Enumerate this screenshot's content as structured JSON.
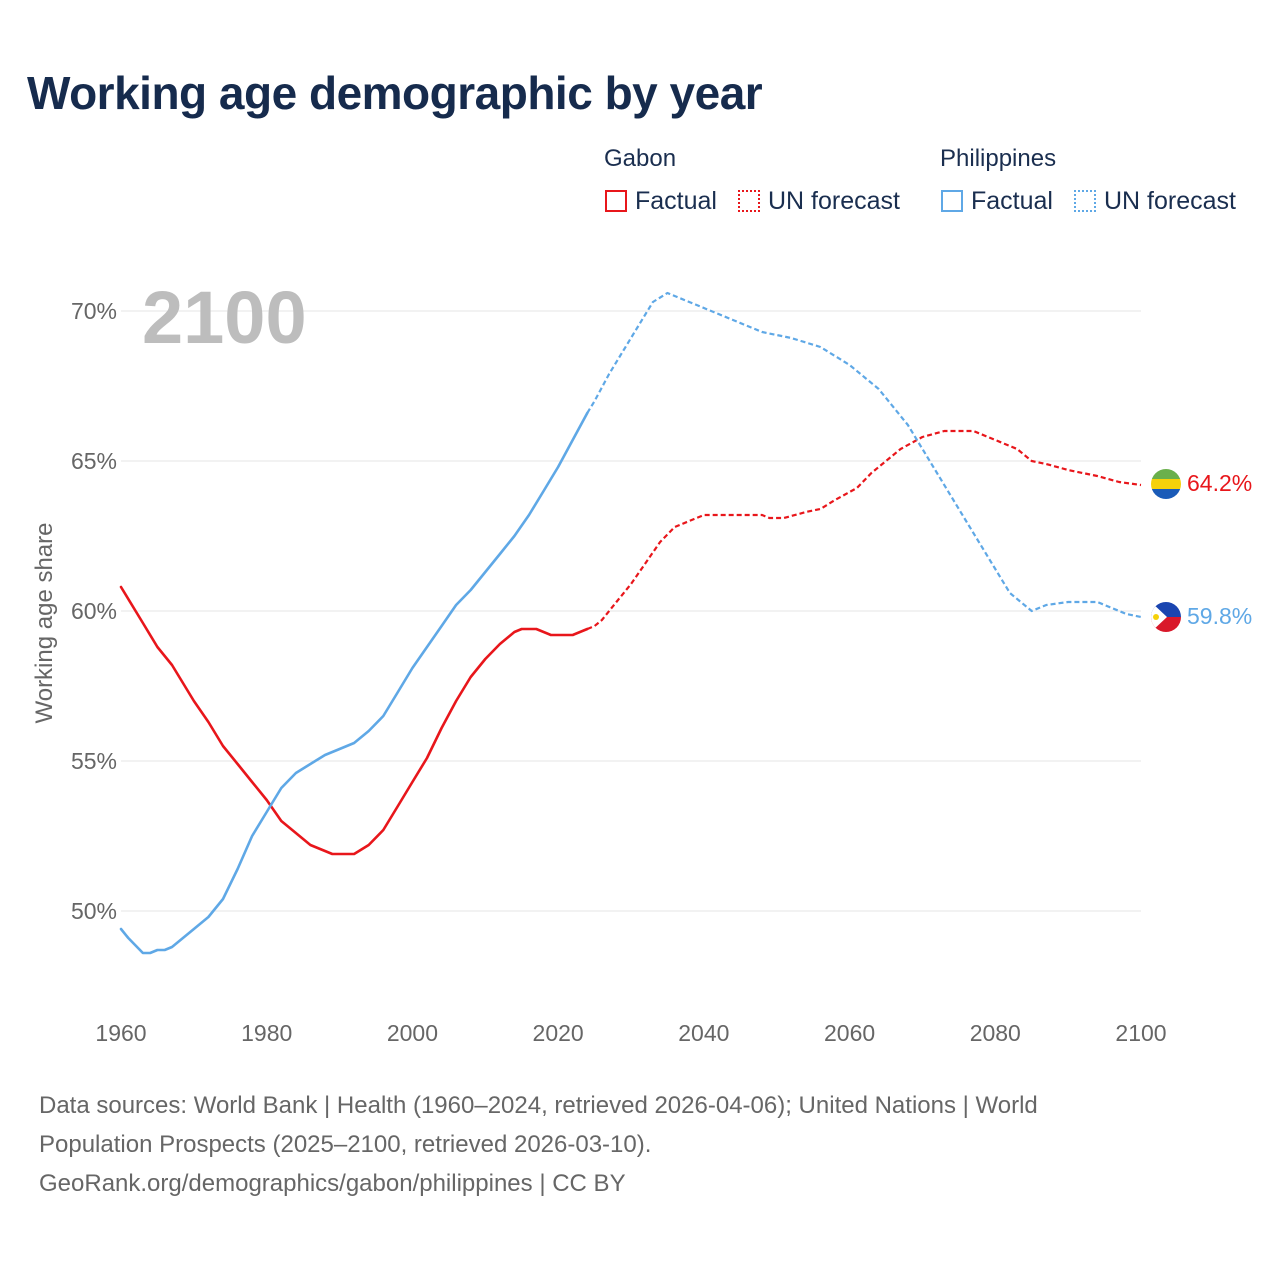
{
  "title": "Working age demographic by year",
  "legend": {
    "groups": [
      {
        "name": "Gabon",
        "factual": "Factual",
        "forecast": "UN forecast"
      },
      {
        "name": "Philippines",
        "factual": "Factual",
        "forecast": "UN forecast"
      }
    ]
  },
  "year_label": "2100",
  "end_labels": {
    "gabon": "64.2%",
    "philippines": "59.8%"
  },
  "source": {
    "line1": "Data sources: World Bank | Health (1960–2024, retrieved 2026-04-06); United Nations | World",
    "line2": "Population Prospects (2025–2100, retrieved 2026-03-10).",
    "line3": "GeoRank.org/demographics/gabon/philippines | CC BY"
  },
  "colors": {
    "gabon": "#e8161b",
    "philippines": "#5fa8e6",
    "grid": "#e6e6e6",
    "axis_text": "#666666",
    "year": "#bdbdbd"
  },
  "chart_data": {
    "type": "line",
    "title": "Working age demographic by year",
    "xlabel": "",
    "ylabel": "Working age share",
    "xlim": [
      1960,
      2100
    ],
    "ylim": [
      47,
      72
    ],
    "x_ticks": [
      1960,
      1980,
      2000,
      2020,
      2040,
      2060,
      2080,
      2100
    ],
    "y_ticks": [
      {
        "value": 50,
        "label": "50%"
      },
      {
        "value": 55,
        "label": "55%"
      },
      {
        "value": 60,
        "label": "60%"
      },
      {
        "value": 65,
        "label": "65%"
      },
      {
        "value": 70,
        "label": "70%"
      }
    ],
    "factual_until": 2024,
    "series": [
      {
        "name": "Gabon",
        "color": "#e8161b",
        "points": [
          [
            1960,
            60.8
          ],
          [
            1963,
            59.6
          ],
          [
            1965,
            58.8
          ],
          [
            1967,
            58.2
          ],
          [
            1970,
            57.0
          ],
          [
            1972,
            56.3
          ],
          [
            1974,
            55.5
          ],
          [
            1976,
            54.9
          ],
          [
            1978,
            54.3
          ],
          [
            1980,
            53.7
          ],
          [
            1982,
            53.0
          ],
          [
            1983,
            52.8
          ],
          [
            1986,
            52.2
          ],
          [
            1989,
            51.9
          ],
          [
            1992,
            51.9
          ],
          [
            1994,
            52.2
          ],
          [
            1996,
            52.7
          ],
          [
            1998,
            53.5
          ],
          [
            2000,
            54.3
          ],
          [
            2002,
            55.1
          ],
          [
            2004,
            56.1
          ],
          [
            2006,
            57.0
          ],
          [
            2008,
            57.8
          ],
          [
            2010,
            58.4
          ],
          [
            2012,
            58.9
          ],
          [
            2014,
            59.3
          ],
          [
            2015,
            59.4
          ],
          [
            2017,
            59.4
          ],
          [
            2019,
            59.2
          ],
          [
            2022,
            59.2
          ],
          [
            2024,
            59.4
          ],
          [
            2025,
            59.5
          ],
          [
            2026,
            59.7
          ],
          [
            2028,
            60.3
          ],
          [
            2030,
            60.9
          ],
          [
            2032,
            61.6
          ],
          [
            2034,
            62.3
          ],
          [
            2036,
            62.8
          ],
          [
            2038,
            63.0
          ],
          [
            2040,
            63.2
          ],
          [
            2042,
            63.2
          ],
          [
            2048,
            63.2
          ],
          [
            2049,
            63.1
          ],
          [
            2051,
            63.1
          ],
          [
            2054,
            63.3
          ],
          [
            2056,
            63.4
          ],
          [
            2058,
            63.7
          ],
          [
            2061,
            64.1
          ],
          [
            2063,
            64.6
          ],
          [
            2065,
            65.0
          ],
          [
            2067,
            65.4
          ],
          [
            2070,
            65.8
          ],
          [
            2073,
            66.0
          ],
          [
            2077,
            66.0
          ],
          [
            2080,
            65.7
          ],
          [
            2083,
            65.4
          ],
          [
            2085,
            65.0
          ],
          [
            2087,
            64.9
          ],
          [
            2090,
            64.7
          ],
          [
            2094,
            64.5
          ],
          [
            2097,
            64.3
          ],
          [
            2100,
            64.2
          ]
        ]
      },
      {
        "name": "Philippines",
        "color": "#5fa8e6",
        "points": [
          [
            1960,
            49.4
          ],
          [
            1961,
            49.1
          ],
          [
            1963,
            48.6
          ],
          [
            1964,
            48.6
          ],
          [
            1965,
            48.7
          ],
          [
            1966,
            48.7
          ],
          [
            1967,
            48.8
          ],
          [
            1969,
            49.2
          ],
          [
            1970,
            49.4
          ],
          [
            1972,
            49.8
          ],
          [
            1974,
            50.4
          ],
          [
            1976,
            51.4
          ],
          [
            1978,
            52.5
          ],
          [
            1980,
            53.3
          ],
          [
            1982,
            54.1
          ],
          [
            1984,
            54.6
          ],
          [
            1986,
            54.9
          ],
          [
            1988,
            55.2
          ],
          [
            1990,
            55.4
          ],
          [
            1992,
            55.6
          ],
          [
            1994,
            56.0
          ],
          [
            1996,
            56.5
          ],
          [
            1998,
            57.3
          ],
          [
            2000,
            58.1
          ],
          [
            2002,
            58.8
          ],
          [
            2004,
            59.5
          ],
          [
            2006,
            60.2
          ],
          [
            2008,
            60.7
          ],
          [
            2010,
            61.3
          ],
          [
            2012,
            61.9
          ],
          [
            2014,
            62.5
          ],
          [
            2016,
            63.2
          ],
          [
            2018,
            64.0
          ],
          [
            2020,
            64.8
          ],
          [
            2022,
            65.7
          ],
          [
            2024,
            66.6
          ],
          [
            2025,
            67.0
          ],
          [
            2027,
            67.9
          ],
          [
            2029,
            68.7
          ],
          [
            2031,
            69.5
          ],
          [
            2033,
            70.3
          ],
          [
            2035,
            70.6
          ],
          [
            2036,
            70.5
          ],
          [
            2040,
            70.1
          ],
          [
            2044,
            69.7
          ],
          [
            2048,
            69.3
          ],
          [
            2052,
            69.1
          ],
          [
            2056,
            68.8
          ],
          [
            2060,
            68.2
          ],
          [
            2064,
            67.4
          ],
          [
            2068,
            66.2
          ],
          [
            2072,
            64.6
          ],
          [
            2076,
            63.0
          ],
          [
            2080,
            61.4
          ],
          [
            2082,
            60.6
          ],
          [
            2085,
            60.0
          ],
          [
            2087,
            60.2
          ],
          [
            2090,
            60.3
          ],
          [
            2094,
            60.3
          ],
          [
            2098,
            59.9
          ],
          [
            2100,
            59.8
          ]
        ]
      }
    ]
  }
}
